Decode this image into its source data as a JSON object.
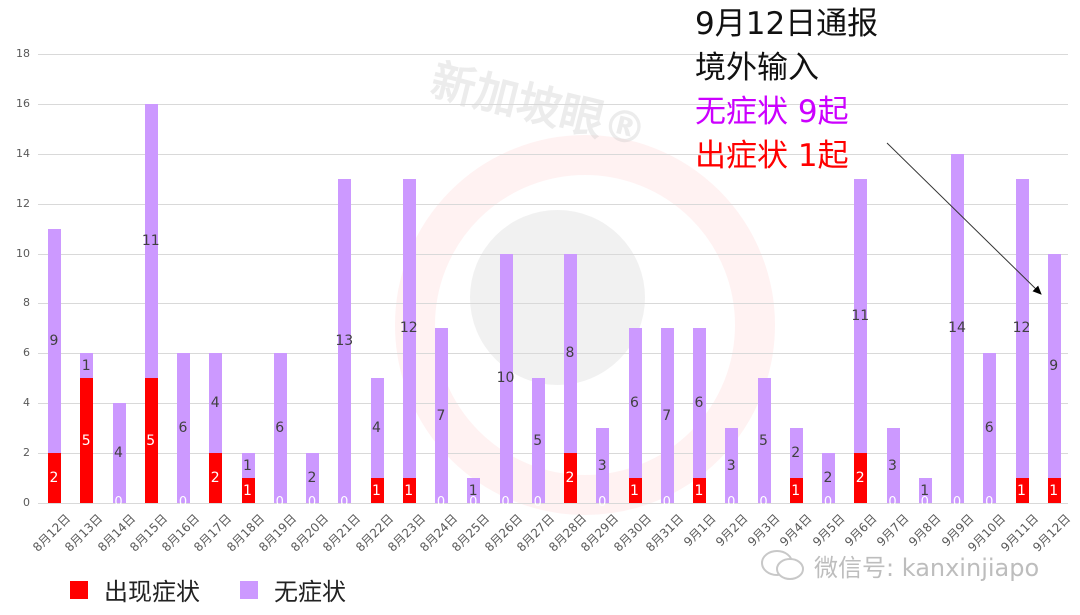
{
  "annotation": {
    "line1": "9月12日通报",
    "line2": "境外输入",
    "line3": "无症状 9起",
    "line4": "出症状 1起",
    "line3_color": "#cc00ff",
    "line4_color": "#ff0000"
  },
  "legend": {
    "items": [
      {
        "label": "出现症状",
        "color": "#ff0000"
      },
      {
        "label": "无症状",
        "color": "#cc99ff"
      }
    ]
  },
  "watermark": {
    "text": "新加坡眼®",
    "wechat": "微信号: kanxinjiapo"
  },
  "chart_data": {
    "type": "bar",
    "stacked": true,
    "title": "",
    "xlabel": "",
    "ylabel": "",
    "ylim": [
      0,
      18
    ],
    "yticks": [
      0,
      2,
      4,
      6,
      8,
      10,
      12,
      14,
      16,
      18
    ],
    "grid": true,
    "legend_position": "bottom-left",
    "categories": [
      "8月12日",
      "8月13日",
      "8月14日",
      "8月15日",
      "8月16日",
      "8月17日",
      "8月18日",
      "8月19日",
      "8月20日",
      "8月21日",
      "8月22日",
      "8月23日",
      "8月24日",
      "8月25日",
      "8月26日",
      "8月27日",
      "8月28日",
      "8月29日",
      "8月30日",
      "8月31日",
      "9月1日",
      "9月2日",
      "9月3日",
      "9月4日",
      "9月5日",
      "9月6日",
      "9月7日",
      "9月8日",
      "9月9日",
      "9月10日",
      "9月11日",
      "9月12日"
    ],
    "series": [
      {
        "name": "出现症状",
        "color": "#ff0000",
        "values": [
          2,
          5,
          0,
          5,
          0,
          2,
          1,
          0,
          0,
          0,
          1,
          1,
          0,
          0,
          0,
          0,
          2,
          0,
          1,
          0,
          1,
          0,
          0,
          1,
          0,
          2,
          0,
          0,
          0,
          0,
          1,
          1
        ]
      },
      {
        "name": "无症状",
        "color": "#cc99ff",
        "values": [
          9,
          1,
          4,
          11,
          6,
          4,
          1,
          6,
          2,
          13,
          4,
          12,
          7,
          1,
          10,
          5,
          8,
          3,
          6,
          7,
          6,
          3,
          5,
          2,
          2,
          11,
          3,
          1,
          14,
          6,
          12,
          9
        ]
      }
    ]
  }
}
